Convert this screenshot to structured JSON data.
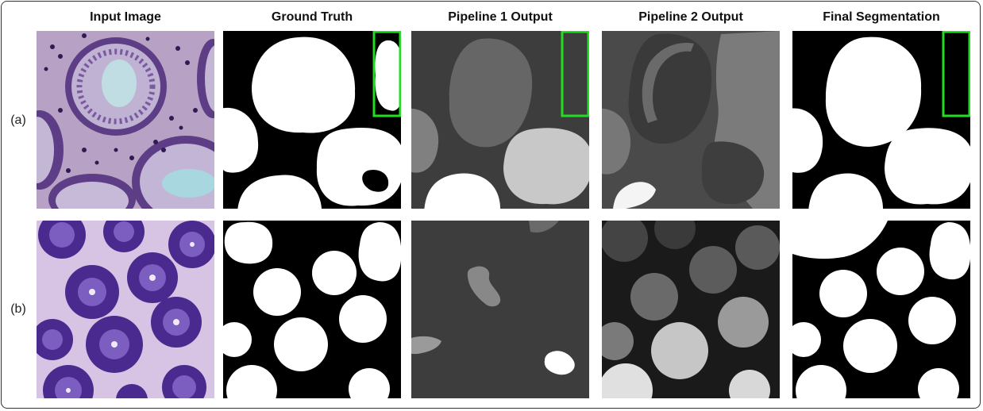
{
  "columns": [
    "Input Image",
    "Ground Truth",
    "Pipeline 1 Output",
    "Pipeline 2 Output",
    "Final Segmentation"
  ],
  "rows": [
    "(a)",
    "(b)"
  ],
  "colors": {
    "highlight": "#22dd22",
    "mask_fg": "#ffffff",
    "mask_bg": "#000000"
  }
}
